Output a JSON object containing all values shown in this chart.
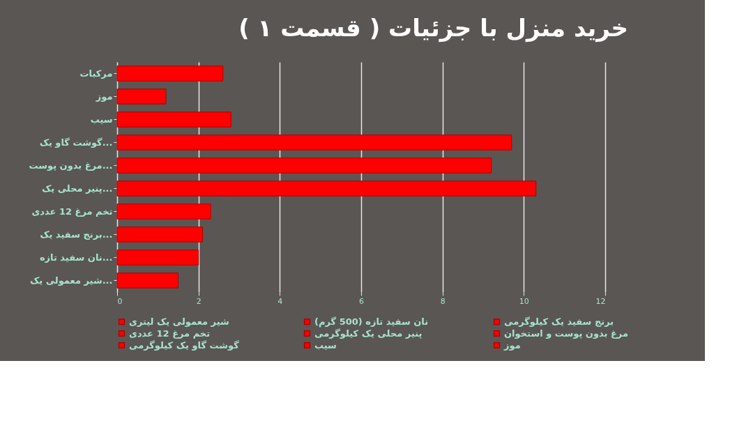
{
  "chart_data": {
    "type": "bar",
    "orientation": "horizontal",
    "title": "خرید منزل با جزئیات ( قسمت ۱ )",
    "categories": [
      "مرکبات",
      "موز",
      "سیب",
      "گوشت گاو یک...",
      "مرغ بدون پوست...",
      "پنیر محلی یک...",
      "تخم مرغ 12 عددی",
      "برنج سفید یک...",
      "نان سفید تازه...",
      "شیر معمولی یک..."
    ],
    "series": [
      {
        "name": "شیر معمولی یک لیتری",
        "color": "#ff0000",
        "values": [
          null,
          null,
          null,
          null,
          null,
          null,
          null,
          null,
          null,
          1.5
        ]
      },
      {
        "name": "نان سفید تازه (500 گرم)",
        "color": "#ff0000",
        "values": [
          null,
          null,
          null,
          null,
          null,
          null,
          null,
          null,
          2.0,
          null
        ]
      },
      {
        "name": "برنج سفید یک کیلوگرمی",
        "color": "#ff0000",
        "values": [
          null,
          null,
          null,
          null,
          null,
          null,
          null,
          2.1,
          null,
          null
        ]
      },
      {
        "name": "تخم مرغ 12 عددی",
        "color": "#ff0000",
        "values": [
          null,
          null,
          null,
          null,
          null,
          null,
          2.3,
          null,
          null,
          null
        ]
      },
      {
        "name": "پنیر محلی یک کیلوگرمی",
        "color": "#ff0000",
        "values": [
          null,
          null,
          null,
          null,
          null,
          10.3,
          null,
          null,
          null,
          null
        ]
      },
      {
        "name": "مرغ بدون پوست و استخوان",
        "color": "#ff0000",
        "values": [
          null,
          null,
          null,
          null,
          9.2,
          null,
          null,
          null,
          null,
          null
        ]
      },
      {
        "name": "گوشت گاو یک کیلوگرمی",
        "color": "#ff0000",
        "values": [
          null,
          null,
          null,
          9.7,
          null,
          null,
          null,
          null,
          null,
          null
        ]
      },
      {
        "name": "سیب",
        "color": "#ff0000",
        "values": [
          null,
          null,
          2.8,
          null,
          null,
          null,
          null,
          null,
          null,
          null
        ]
      },
      {
        "name": "موز",
        "color": "#ff0000",
        "values": [
          null,
          1.2,
          null,
          null,
          null,
          null,
          null,
          null,
          null,
          null
        ]
      },
      {
        "color": "#ff0000",
        "values": [
          2.6,
          null,
          null,
          null,
          null,
          null,
          null,
          null,
          null,
          null
        ]
      }
    ],
    "xlim": [
      0,
      12
    ],
    "xticks": [
      0,
      2,
      4,
      6,
      8,
      10,
      12
    ],
    "grid": "x",
    "legend": "bottom"
  }
}
